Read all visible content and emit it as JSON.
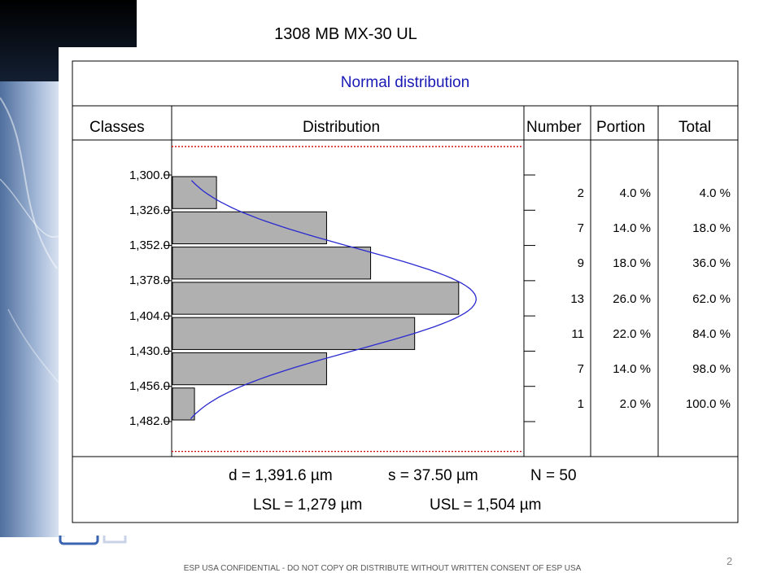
{
  "slide": {
    "title": "1308 MB MX-30 UL",
    "footer": "ESP USA CONFIDENTIAL - DO NOT COPY OR DISTRIBUTE WITHOUT WRITTEN CONSENT OF ESP USA",
    "page_number": "2"
  },
  "table": {
    "headers": {
      "classes": "Classes",
      "distribution": "Distribution",
      "number": "Number",
      "portion": "Portion",
      "total": "Total"
    }
  },
  "stats": {
    "mean": "d = 1,391.6 µm",
    "sigma": "s = 37.50 µm",
    "n": "N = 50",
    "lsl": "LSL = 1,279 µm",
    "usl": "USL = 1,504 µm"
  },
  "colors": {
    "title": "#1a1ab5",
    "bars": "#b0b0b0",
    "curve": "#2a2ad0",
    "limits": "#cc0000"
  },
  "chart_data": {
    "type": "bar",
    "orientation": "horizontal",
    "title": "Normal distribution",
    "class_bounds": [
      "1,300.0",
      "1,326.0",
      "1,352.0",
      "1,378.0",
      "1,404.0",
      "1,430.0",
      "1,456.0",
      "1,482.0"
    ],
    "class_bounds_values": [
      1300,
      1326,
      1352,
      1378,
      1404,
      1430,
      1456,
      1482
    ],
    "counts": [
      2,
      7,
      9,
      13,
      11,
      7,
      1
    ],
    "portion": [
      "4.0 %",
      "14.0 %",
      "18.0 %",
      "26.0 %",
      "22.0 %",
      "14.0 %",
      "2.0 %"
    ],
    "total": [
      "4.0 %",
      "18.0 %",
      "36.0 %",
      "62.0 %",
      "84.0 %",
      "98.0 %",
      "100.0 %"
    ],
    "count_labels": [
      "2",
      "7",
      "9",
      "13",
      "11",
      "7",
      "1"
    ],
    "normal_curve": {
      "mean": 1391.6,
      "sd": 37.5,
      "n": 50
    },
    "lsl": 1279,
    "usl": 1504,
    "x_max_count": 16
  }
}
